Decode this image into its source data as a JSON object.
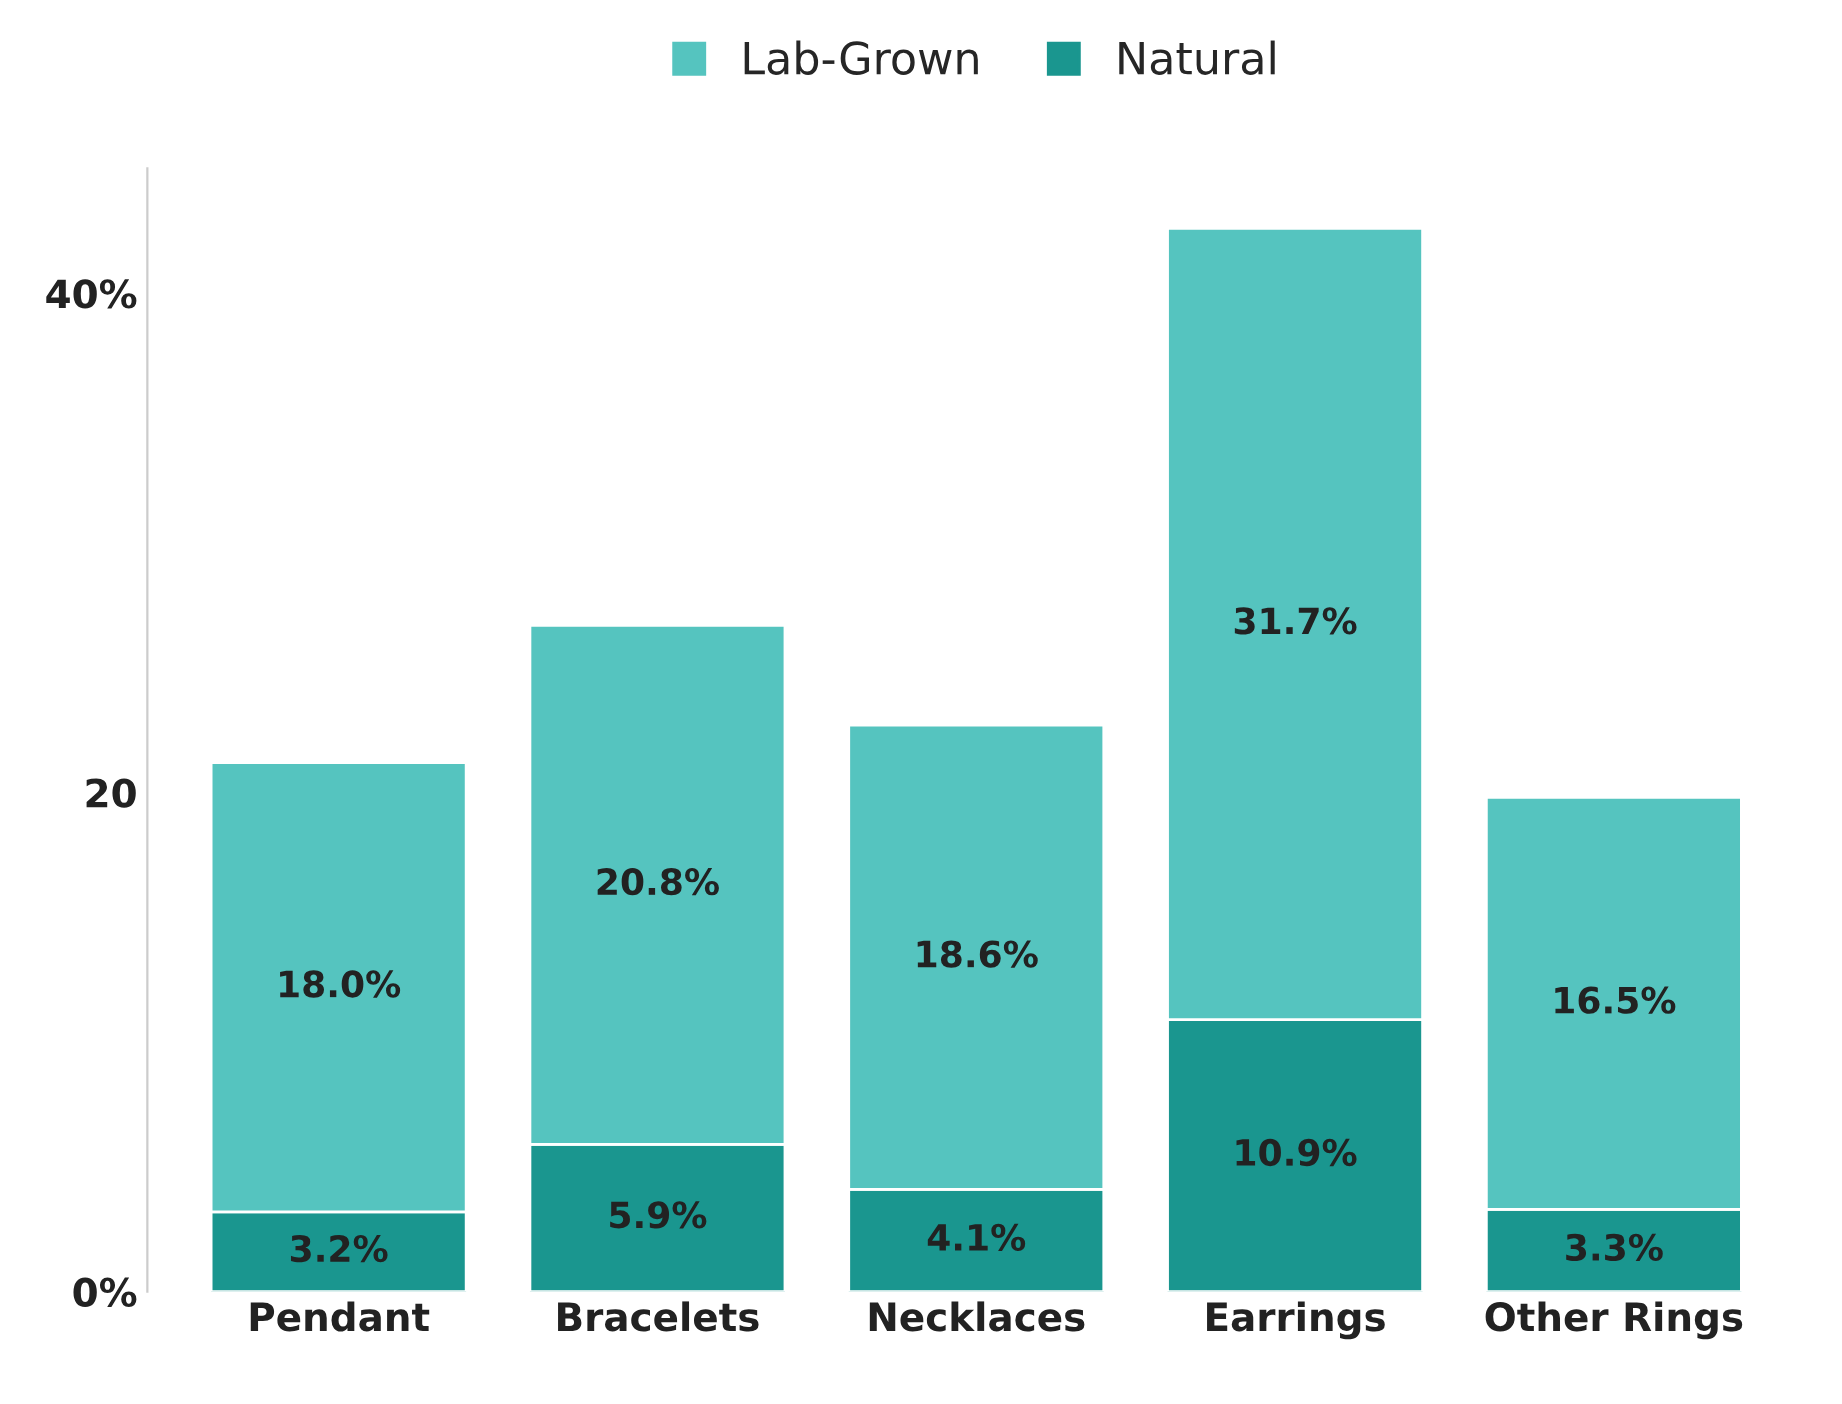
{
  "chart_data": {
    "type": "bar",
    "stacked": true,
    "legend": "top",
    "categories": [
      "Pendant",
      "Bracelets",
      "Necklaces",
      "Earrings",
      "Other Rings"
    ],
    "series": [
      {
        "name": "Natural",
        "color": "#1a968f",
        "values": [
          3.2,
          5.9,
          4.1,
          10.9,
          3.3
        ],
        "value_labels": [
          "3.2%",
          "5.9%",
          "4.1%",
          "10.9%",
          "3.3%"
        ]
      },
      {
        "name": "Lab-Grown",
        "color": "#55c4bf",
        "values": [
          18.0,
          20.8,
          18.6,
          31.7,
          16.5
        ],
        "value_labels": [
          "18.0%",
          "20.8%",
          "18.6%",
          "31.7%",
          "16.5%"
        ]
      }
    ],
    "ylim": [
      0,
      45
    ],
    "yticks": [
      {
        "value": 0,
        "label": "0%"
      },
      20,
      {
        "value": 40,
        "label": "40%"
      }
    ],
    "grid": false
  }
}
